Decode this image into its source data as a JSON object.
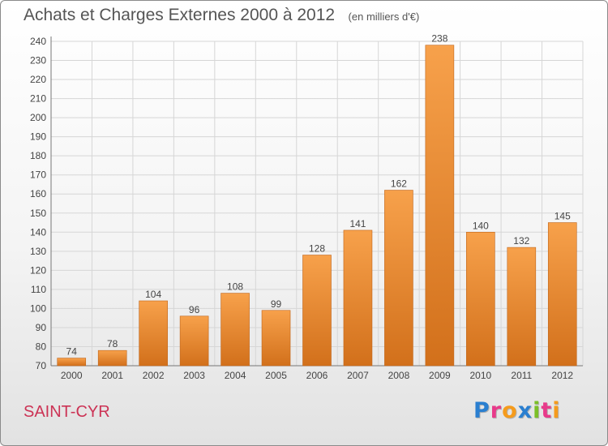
{
  "chart_data": {
    "type": "bar",
    "title": "Achats et Charges Externes 2000 à 2012",
    "subtitle": "(en milliers d'€)",
    "categories": [
      "2000",
      "2001",
      "2002",
      "2003",
      "2004",
      "2005",
      "2006",
      "2007",
      "2008",
      "2009",
      "2010",
      "2011",
      "2012"
    ],
    "values": [
      74,
      78,
      104,
      96,
      108,
      99,
      128,
      141,
      162,
      238,
      140,
      132,
      145
    ],
    "ylim": [
      70,
      240
    ],
    "yticks": [
      70,
      80,
      90,
      100,
      110,
      120,
      130,
      140,
      150,
      160,
      170,
      180,
      190,
      200,
      210,
      220,
      230,
      240
    ],
    "grid": true,
    "bar_color_top": "#f7a14b",
    "bar_color_bottom": "#d2701b"
  },
  "commune": "SAINT-CYR",
  "logo": {
    "letters": [
      "P",
      "r",
      "o",
      "x",
      "i",
      "t",
      "i"
    ],
    "colors": [
      "#2a7fd0",
      "#e83a8a",
      "#f59b1c",
      "#2a7fd0",
      "#7bbf28",
      "#e83a8a",
      "#f59b1c"
    ]
  }
}
